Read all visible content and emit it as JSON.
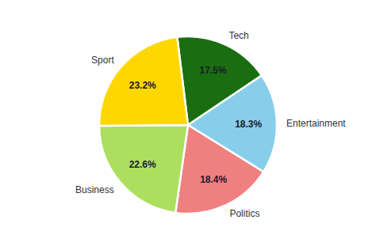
{
  "chart_data": {
    "type": "pie",
    "categories": [
      "Tech",
      "Entertainment",
      "Politics",
      "Business",
      "Sport"
    ],
    "values": [
      17.5,
      18.3,
      18.4,
      22.6,
      23.2
    ],
    "value_labels": [
      "17.5%",
      "18.3%",
      "18.4%",
      "22.6%",
      "23.2%"
    ],
    "data_labels": true,
    "colors": [
      "#1A6E10",
      "#87CEEB",
      "#F08080",
      "#ADDF5F",
      "#FFD700"
    ]
  }
}
